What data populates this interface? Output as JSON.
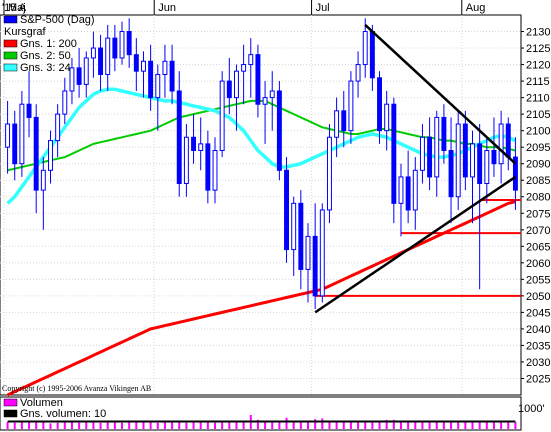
{
  "chart_data": {
    "type": "candlestick",
    "title": "S&P-500 (Dag)",
    "year_label": "'15 A",
    "months": [
      "Maj",
      "Jun",
      "Jul",
      "Aug"
    ],
    "ylim": [
      2020,
      2135
    ],
    "yticks": [
      2025,
      2030,
      2035,
      2040,
      2045,
      2050,
      2055,
      2060,
      2065,
      2070,
      2075,
      2080,
      2085,
      2090,
      2095,
      2100,
      2105,
      2110,
      2115,
      2120,
      2125,
      2130
    ],
    "legend": [
      {
        "name": "S&P-500 (Dag)",
        "color": "#0000ff"
      },
      {
        "name": "Kursgraf",
        "color": null
      },
      {
        "name": "Gns. 1: 200",
        "color": "#ff0000"
      },
      {
        "name": "Gns. 2: 50",
        "color": "#00cc00"
      },
      {
        "name": "Gns. 3: 24",
        "color": "#33ffff"
      }
    ],
    "volume_legend": [
      {
        "name": "Volumen",
        "color": "#ff00ff"
      },
      {
        "name": "Gns. volumen: 10",
        "color": "#000000"
      }
    ],
    "volume_tick": "1000'",
    "copyright": "Copyright (c) 1995-2006 Avanza Vikingen AB",
    "month_start_index": [
      0,
      21,
      43,
      64
    ],
    "candles": [
      [
        2095,
        2109,
        2087,
        2102
      ],
      [
        2102,
        2106,
        2085,
        2090
      ],
      [
        2090,
        2112,
        2086,
        2108
      ],
      [
        2108,
        2118,
        2098,
        2104
      ],
      [
        2104,
        2108,
        2075,
        2082
      ],
      [
        2082,
        2092,
        2070,
        2088
      ],
      [
        2088,
        2100,
        2084,
        2097
      ],
      [
        2097,
        2108,
        2092,
        2105
      ],
      [
        2105,
        2116,
        2102,
        2112
      ],
      [
        2112,
        2122,
        2108,
        2119
      ],
      [
        2119,
        2125,
        2110,
        2114
      ],
      [
        2114,
        2124,
        2110,
        2122
      ],
      [
        2122,
        2130,
        2116,
        2125
      ],
      [
        2125,
        2129,
        2112,
        2117
      ],
      [
        2117,
        2132,
        2112,
        2128
      ],
      [
        2128,
        2132,
        2118,
        2122
      ],
      [
        2122,
        2133,
        2120,
        2130
      ],
      [
        2130,
        2134,
        2119,
        2123
      ],
      [
        2123,
        2128,
        2112,
        2118
      ],
      [
        2118,
        2124,
        2110,
        2121
      ],
      [
        2121,
        2126,
        2106,
        2110
      ],
      [
        2110,
        2120,
        2100,
        2117
      ],
      [
        2117,
        2126,
        2110,
        2121
      ],
      [
        2121,
        2126,
        2108,
        2112
      ],
      [
        2112,
        2118,
        2080,
        2084
      ],
      [
        2084,
        2102,
        2080,
        2098
      ],
      [
        2098,
        2105,
        2090,
        2094
      ],
      [
        2094,
        2104,
        2088,
        2096
      ],
      [
        2096,
        2100,
        2078,
        2082
      ],
      [
        2082,
        2098,
        2078,
        2094
      ],
      [
        2094,
        2118,
        2092,
        2115
      ],
      [
        2115,
        2122,
        2105,
        2110
      ],
      [
        2110,
        2120,
        2100,
        2118
      ],
      [
        2118,
        2126,
        2108,
        2120
      ],
      [
        2120,
        2128,
        2110,
        2123
      ],
      [
        2123,
        2126,
        2104,
        2108
      ],
      [
        2108,
        2115,
        2096,
        2110
      ],
      [
        2110,
        2118,
        2100,
        2112
      ],
      [
        2112,
        2115,
        2085,
        2088
      ],
      [
        2088,
        2092,
        2060,
        2064
      ],
      [
        2064,
        2080,
        2056,
        2078
      ],
      [
        2078,
        2082,
        2052,
        2058
      ],
      [
        2058,
        2072,
        2048,
        2068
      ],
      [
        2068,
        2078,
        2046,
        2050
      ],
      [
        2050,
        2078,
        2048,
        2076
      ],
      [
        2076,
        2102,
        2072,
        2098
      ],
      [
        2098,
        2110,
        2092,
        2106
      ],
      [
        2106,
        2112,
        2095,
        2100
      ],
      [
        2100,
        2118,
        2096,
        2115
      ],
      [
        2115,
        2124,
        2110,
        2120
      ],
      [
        2120,
        2134,
        2116,
        2130
      ],
      [
        2130,
        2132,
        2112,
        2116
      ],
      [
        2116,
        2118,
        2096,
        2100
      ],
      [
        2100,
        2112,
        2094,
        2108
      ],
      [
        2108,
        2110,
        2072,
        2078
      ],
      [
        2078,
        2090,
        2068,
        2086
      ],
      [
        2086,
        2094,
        2072,
        2076
      ],
      [
        2076,
        2092,
        2070,
        2088
      ],
      [
        2088,
        2102,
        2084,
        2098
      ],
      [
        2098,
        2104,
        2082,
        2086
      ],
      [
        2086,
        2106,
        2080,
        2104
      ],
      [
        2104,
        2108,
        2090,
        2094
      ],
      [
        2094,
        2104,
        2072,
        2080
      ],
      [
        2080,
        2106,
        2076,
        2102
      ],
      [
        2102,
        2106,
        2082,
        2086
      ],
      [
        2086,
        2100,
        2072,
        2096
      ],
      [
        2096,
        2102,
        2052,
        2084
      ],
      [
        2084,
        2098,
        2078,
        2094
      ],
      [
        2094,
        2104,
        2086,
        2090
      ],
      [
        2090,
        2106,
        2084,
        2102
      ],
      [
        2102,
        2104,
        2088,
        2092
      ],
      [
        2092,
        2098,
        2076,
        2082
      ]
    ],
    "ma200": [
      2020,
      2021,
      2022,
      2023,
      2024,
      2025,
      2026,
      2027,
      2028,
      2029,
      2030,
      2031,
      2032,
      2033,
      2034,
      2035,
      2036,
      2037,
      2038,
      2039,
      2040,
      2040.5,
      2041,
      2041.5,
      2042,
      2042.5,
      2043,
      2043.5,
      2044,
      2044.5,
      2045,
      2045.5,
      2046,
      2046.5,
      2047,
      2047.5,
      2048,
      2048.5,
      2049,
      2049.5,
      2050,
      2050.5,
      2051,
      2051.5,
      2052,
      2053,
      2054,
      2055,
      2056,
      2057,
      2058,
      2059,
      2060,
      2061,
      2062,
      2063,
      2064,
      2065,
      2066,
      2067,
      2068,
      2069,
      2070,
      2071,
      2072,
      2073,
      2074,
      2075,
      2076,
      2077,
      2078,
      2078.5
    ],
    "ma50": [
      2088,
      2088.5,
      2089,
      2089.5,
      2090,
      2090.5,
      2091,
      2091.5,
      2092,
      2093,
      2094,
      2095,
      2096,
      2096.5,
      2097,
      2097.5,
      2098,
      2098.5,
      2099,
      2099.5,
      2100,
      2101,
      2102,
      2103,
      2104,
      2104.5,
      2105,
      2105.5,
      2106,
      2106.5,
      2107,
      2107.5,
      2108,
      2108.5,
      2109,
      2109,
      2109,
      2108,
      2107,
      2106,
      2105,
      2104,
      2103,
      2102,
      2101,
      2100.5,
      2100,
      2099.5,
      2099,
      2099,
      2099.5,
      2100,
      2100.5,
      2100.5,
      2100,
      2099.5,
      2099,
      2098.5,
      2098,
      2098,
      2097.5,
      2097,
      2097,
      2096.5,
      2096,
      2096,
      2095.5,
      2095,
      2095,
      2095,
      2094.5,
      2094
    ],
    "ma24": [
      2078,
      2080,
      2083,
      2086,
      2089,
      2092,
      2095,
      2098,
      2101,
      2104,
      2107,
      2109,
      2111,
      2112,
      2112.5,
      2112.5,
      2112,
      2111.5,
      2111,
      2110.5,
      2110,
      2109.5,
      2109,
      2109,
      2108.5,
      2108,
      2107.5,
      2107,
      2106.5,
      2106,
      2105,
      2104,
      2102,
      2100,
      2097,
      2094,
      2092,
      2090,
      2089,
      2089,
      2089.5,
      2090,
      2091,
      2092,
      2093,
      2094,
      2095,
      2096,
      2097,
      2098,
      2098.5,
      2099,
      2098.5,
      2098,
      2097,
      2096,
      2095,
      2094,
      2093,
      2092.5,
      2092,
      2092,
      2092.5,
      2093,
      2094,
      2095,
      2096,
      2097,
      2098,
      2098.5,
      2098,
      2097
    ],
    "trendlines": [
      {
        "from": [
          43,
          2045
        ],
        "to": [
          71,
          2086
        ],
        "style": "support"
      },
      {
        "from": [
          50,
          2132
        ],
        "to": [
          71,
          2090
        ],
        "style": "resistance"
      }
    ],
    "hlines": [
      {
        "y": 2050,
        "from": 43,
        "to": 71
      },
      {
        "y": 2069,
        "from": 55,
        "to": 71
      },
      {
        "y": 2079,
        "from": 66,
        "to": 71
      }
    ],
    "volumes": [
      1.0,
      0.9,
      1.1,
      1.0,
      1.2,
      1.0,
      0.8,
      0.9,
      1.0,
      1.1,
      0.9,
      1.0,
      1.0,
      0.9,
      1.0,
      1.1,
      0.9,
      1.0,
      1.0,
      1.1,
      1.2,
      0.9,
      1.0,
      1.0,
      1.1,
      0.9,
      1.0,
      1.0,
      1.0,
      0.9,
      1.0,
      1.1,
      1.0,
      1.0,
      1.2,
      1.3,
      1.0,
      1.0,
      1.1,
      1.4,
      1.0,
      1.0,
      1.2,
      1.4,
      1.3,
      1.0,
      1.2,
      1.1,
      1.0,
      1.0,
      1.2,
      1.0,
      1.0,
      1.3,
      1.3,
      1.0,
      1.0,
      1.0,
      1.0,
      1.1,
      1.0,
      1.0,
      1.0,
      1.0,
      1.0,
      1.0,
      1.0,
      1.0,
      1.0,
      1.0,
      1.0,
      1.0
    ],
    "volume_spikes": [
      {
        "i": 34,
        "v": 2.0
      },
      {
        "i": 39,
        "v": 1.6
      },
      {
        "i": 44,
        "v": 1.5
      }
    ]
  }
}
